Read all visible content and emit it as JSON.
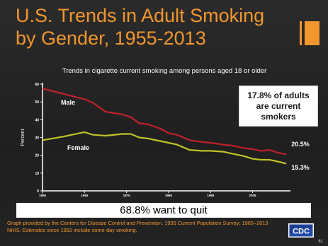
{
  "title_line1": "U.S. Trends in Adult Smoking",
  "title_line2": "by Gender, 1955-2013",
  "chart_data": {
    "type": "line",
    "title": "Trends in cigarette current smoking among persons aged 18 or older",
    "ylabel": "Percent",
    "xlabel": "",
    "xlim": [
      1955,
      2013
    ],
    "ylim": [
      0,
      60
    ],
    "yticks": [
      0,
      10,
      20,
      30,
      40,
      50,
      60
    ],
    "xticks": [
      1955,
      1965,
      1975,
      1985,
      1995,
      2005
    ],
    "grid": false,
    "series": [
      {
        "name": "Male",
        "color": "#c0202a",
        "x": [
          1955,
          1960,
          1965,
          1967,
          1970,
          1974,
          1976,
          1978,
          1980,
          1983,
          1985,
          1987,
          1990,
          1993,
          1995,
          1998,
          2000,
          2003,
          2005,
          2007,
          2009,
          2011,
          2013
        ],
        "y": [
          57.5,
          54.5,
          51.5,
          49.5,
          44.5,
          43.0,
          41.5,
          38.0,
          37.5,
          35.0,
          32.5,
          31.5,
          28.5,
          27.5,
          27.0,
          26.0,
          25.5,
          24.0,
          23.5,
          22.5,
          23.0,
          21.5,
          20.5
        ]
      },
      {
        "name": "Female",
        "color": "#c2c126",
        "x": [
          1955,
          1960,
          1965,
          1967,
          1970,
          1974,
          1976,
          1978,
          1980,
          1983,
          1985,
          1987,
          1990,
          1993,
          1995,
          1998,
          2000,
          2003,
          2005,
          2007,
          2009,
          2011,
          2013
        ],
        "y": [
          28.5,
          30.5,
          33.0,
          31.5,
          31.0,
          32.0,
          32.0,
          30.0,
          29.5,
          28.0,
          27.0,
          26.0,
          23.0,
          22.5,
          22.5,
          22.0,
          21.0,
          19.5,
          18.0,
          17.5,
          17.5,
          16.5,
          15.3
        ]
      }
    ],
    "series_labels": [
      "Male",
      "Female"
    ],
    "end_labels": [
      "20.5%",
      "15.3%"
    ],
    "callout": "17.8% of adults are current smokers"
  },
  "quit_banner": "68.8% want to quit",
  "source_note": "Graph provided by the Centers for Disease Control and Prevention. 1955 Current Population Survey; 1965–2013 NHIS. Estimates since 1992 include some-day smoking.",
  "logo_text": "CDC",
  "page_number": "61",
  "colors": {
    "title": "#f2962e",
    "male": "#c0202a",
    "female": "#c2c126",
    "background": "#262626"
  }
}
